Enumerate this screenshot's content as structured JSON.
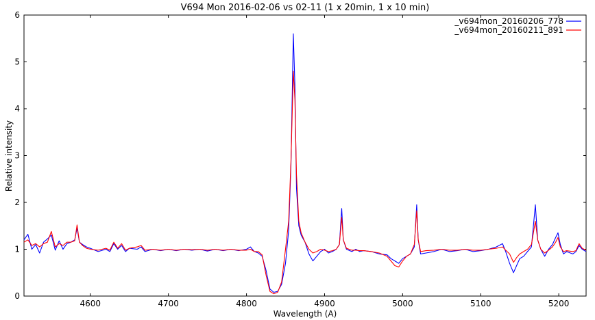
{
  "chart_data": {
    "type": "line",
    "title": "V694 Mon 2016-02-06 vs 02-11 (1 x 20min, 1 x 10 min)",
    "xlabel": "Wavelength (A)",
    "ylabel": "Relative intensity",
    "xlim": [
      4515,
      5235
    ],
    "ylim": [
      0,
      6
    ],
    "xticks": [
      4600,
      4700,
      4800,
      4900,
      5000,
      5100,
      5200
    ],
    "yticks": [
      0,
      1,
      2,
      3,
      4,
      5,
      6
    ],
    "grid": false,
    "legend_position": "top-right",
    "series": [
      {
        "name": "_v694mon_20160206_778",
        "color": "#0000ff",
        "points": [
          [
            4515,
            1.2
          ],
          [
            4520,
            1.32
          ],
          [
            4525,
            1.0
          ],
          [
            4530,
            1.1
          ],
          [
            4535,
            0.92
          ],
          [
            4540,
            1.15
          ],
          [
            4545,
            1.22
          ],
          [
            4550,
            1.3
          ],
          [
            4555,
            0.98
          ],
          [
            4560,
            1.18
          ],
          [
            4565,
            1.0
          ],
          [
            4570,
            1.12
          ],
          [
            4575,
            1.15
          ],
          [
            4580,
            1.2
          ],
          [
            4583,
            1.45
          ],
          [
            4586,
            1.15
          ],
          [
            4590,
            1.1
          ],
          [
            4595,
            1.05
          ],
          [
            4600,
            1.02
          ],
          [
            4610,
            0.95
          ],
          [
            4620,
            1.0
          ],
          [
            4625,
            0.95
          ],
          [
            4630,
            1.12
          ],
          [
            4635,
            1.0
          ],
          [
            4640,
            1.08
          ],
          [
            4645,
            0.95
          ],
          [
            4650,
            1.02
          ],
          [
            4660,
            1.0
          ],
          [
            4665,
            1.05
          ],
          [
            4670,
            0.95
          ],
          [
            4680,
            1.0
          ],
          [
            4690,
            0.97
          ],
          [
            4700,
            1.0
          ],
          [
            4710,
            0.97
          ],
          [
            4720,
            1.0
          ],
          [
            4730,
            0.98
          ],
          [
            4740,
            1.0
          ],
          [
            4750,
            0.96
          ],
          [
            4760,
            1.0
          ],
          [
            4770,
            0.97
          ],
          [
            4780,
            1.0
          ],
          [
            4790,
            0.97
          ],
          [
            4800,
            1.0
          ],
          [
            4805,
            1.05
          ],
          [
            4810,
            0.95
          ],
          [
            4815,
            0.92
          ],
          [
            4820,
            0.85
          ],
          [
            4825,
            0.55
          ],
          [
            4830,
            0.15
          ],
          [
            4835,
            0.08
          ],
          [
            4840,
            0.1
          ],
          [
            4845,
            0.25
          ],
          [
            4850,
            0.7
          ],
          [
            4854,
            1.4
          ],
          [
            4857,
            2.8
          ],
          [
            4860,
            5.6
          ],
          [
            4862,
            4.5
          ],
          [
            4864,
            2.3
          ],
          [
            4867,
            1.5
          ],
          [
            4870,
            1.3
          ],
          [
            4875,
            1.15
          ],
          [
            4880,
            0.9
          ],
          [
            4885,
            0.75
          ],
          [
            4890,
            0.85
          ],
          [
            4895,
            0.95
          ],
          [
            4900,
            1.0
          ],
          [
            4905,
            0.92
          ],
          [
            4910,
            0.95
          ],
          [
            4915,
            1.0
          ],
          [
            4919,
            1.1
          ],
          [
            4922,
            1.87
          ],
          [
            4924,
            1.2
          ],
          [
            4928,
            1.0
          ],
          [
            4935,
            0.95
          ],
          [
            4940,
            1.0
          ],
          [
            4945,
            0.95
          ],
          [
            4950,
            0.97
          ],
          [
            4960,
            0.95
          ],
          [
            4970,
            0.9
          ],
          [
            4980,
            0.88
          ],
          [
            4985,
            0.8
          ],
          [
            4990,
            0.75
          ],
          [
            4995,
            0.7
          ],
          [
            5000,
            0.8
          ],
          [
            5005,
            0.85
          ],
          [
            5010,
            0.9
          ],
          [
            5015,
            1.05
          ],
          [
            5018,
            1.95
          ],
          [
            5020,
            1.2
          ],
          [
            5023,
            0.9
          ],
          [
            5030,
            0.92
          ],
          [
            5040,
            0.95
          ],
          [
            5050,
            1.0
          ],
          [
            5060,
            0.95
          ],
          [
            5070,
            0.97
          ],
          [
            5080,
            1.0
          ],
          [
            5090,
            0.95
          ],
          [
            5100,
            0.97
          ],
          [
            5110,
            1.0
          ],
          [
            5120,
            1.05
          ],
          [
            5128,
            1.12
          ],
          [
            5132,
            0.95
          ],
          [
            5137,
            0.7
          ],
          [
            5142,
            0.5
          ],
          [
            5146,
            0.65
          ],
          [
            5150,
            0.8
          ],
          [
            5155,
            0.85
          ],
          [
            5160,
            0.95
          ],
          [
            5165,
            1.05
          ],
          [
            5170,
            1.95
          ],
          [
            5173,
            1.2
          ],
          [
            5177,
            1.0
          ],
          [
            5182,
            0.85
          ],
          [
            5187,
            1.0
          ],
          [
            5192,
            1.1
          ],
          [
            5196,
            1.25
          ],
          [
            5199,
            1.35
          ],
          [
            5202,
            1.1
          ],
          [
            5206,
            0.9
          ],
          [
            5210,
            0.95
          ],
          [
            5218,
            0.9
          ],
          [
            5222,
            0.95
          ],
          [
            5226,
            1.08
          ],
          [
            5230,
            1.0
          ],
          [
            5235,
            0.95
          ]
        ]
      },
      {
        "name": "_v694mon_20160211_891",
        "color": "#ff0000",
        "points": [
          [
            4515,
            1.15
          ],
          [
            4520,
            1.2
          ],
          [
            4525,
            1.08
          ],
          [
            4530,
            1.12
          ],
          [
            4535,
            1.05
          ],
          [
            4540,
            1.12
          ],
          [
            4545,
            1.15
          ],
          [
            4550,
            1.38
          ],
          [
            4555,
            1.05
          ],
          [
            4560,
            1.12
          ],
          [
            4565,
            1.08
          ],
          [
            4570,
            1.15
          ],
          [
            4575,
            1.15
          ],
          [
            4580,
            1.18
          ],
          [
            4583,
            1.52
          ],
          [
            4586,
            1.15
          ],
          [
            4590,
            1.08
          ],
          [
            4595,
            1.02
          ],
          [
            4600,
            1.0
          ],
          [
            4610,
            0.98
          ],
          [
            4620,
            1.02
          ],
          [
            4625,
            0.98
          ],
          [
            4630,
            1.15
          ],
          [
            4635,
            1.02
          ],
          [
            4640,
            1.12
          ],
          [
            4645,
            0.98
          ],
          [
            4650,
            1.02
          ],
          [
            4660,
            1.05
          ],
          [
            4665,
            1.08
          ],
          [
            4670,
            0.98
          ],
          [
            4680,
            1.0
          ],
          [
            4690,
            0.98
          ],
          [
            4700,
            1.0
          ],
          [
            4710,
            0.98
          ],
          [
            4720,
            1.0
          ],
          [
            4730,
            0.99
          ],
          [
            4740,
            1.0
          ],
          [
            4750,
            0.98
          ],
          [
            4760,
            1.0
          ],
          [
            4770,
            0.98
          ],
          [
            4780,
            1.0
          ],
          [
            4790,
            0.98
          ],
          [
            4800,
            0.98
          ],
          [
            4805,
            1.0
          ],
          [
            4810,
            0.95
          ],
          [
            4815,
            0.95
          ],
          [
            4820,
            0.88
          ],
          [
            4825,
            0.45
          ],
          [
            4830,
            0.1
          ],
          [
            4835,
            0.05
          ],
          [
            4840,
            0.08
          ],
          [
            4845,
            0.3
          ],
          [
            4850,
            1.0
          ],
          [
            4854,
            1.6
          ],
          [
            4857,
            2.9
          ],
          [
            4860,
            4.8
          ],
          [
            4862,
            4.2
          ],
          [
            4864,
            2.6
          ],
          [
            4867,
            1.6
          ],
          [
            4870,
            1.35
          ],
          [
            4875,
            1.15
          ],
          [
            4880,
            1.0
          ],
          [
            4885,
            0.92
          ],
          [
            4890,
            0.95
          ],
          [
            4895,
            1.0
          ],
          [
            4900,
            0.98
          ],
          [
            4905,
            0.95
          ],
          [
            4910,
            0.97
          ],
          [
            4915,
            1.0
          ],
          [
            4919,
            1.1
          ],
          [
            4922,
            1.68
          ],
          [
            4924,
            1.2
          ],
          [
            4928,
            1.02
          ],
          [
            4935,
            0.98
          ],
          [
            4940,
            0.98
          ],
          [
            4945,
            0.97
          ],
          [
            4950,
            0.97
          ],
          [
            4960,
            0.95
          ],
          [
            4970,
            0.92
          ],
          [
            4980,
            0.85
          ],
          [
            4985,
            0.75
          ],
          [
            4990,
            0.65
          ],
          [
            4995,
            0.62
          ],
          [
            5000,
            0.75
          ],
          [
            5005,
            0.85
          ],
          [
            5010,
            0.9
          ],
          [
            5015,
            1.1
          ],
          [
            5018,
            1.82
          ],
          [
            5020,
            1.2
          ],
          [
            5023,
            0.95
          ],
          [
            5030,
            0.97
          ],
          [
            5040,
            0.98
          ],
          [
            5050,
            1.0
          ],
          [
            5060,
            0.98
          ],
          [
            5070,
            0.98
          ],
          [
            5080,
            1.0
          ],
          [
            5090,
            0.98
          ],
          [
            5100,
            0.98
          ],
          [
            5110,
            1.0
          ],
          [
            5120,
            1.02
          ],
          [
            5128,
            1.05
          ],
          [
            5132,
            0.98
          ],
          [
            5137,
            0.9
          ],
          [
            5142,
            0.72
          ],
          [
            5146,
            0.82
          ],
          [
            5150,
            0.9
          ],
          [
            5155,
            0.95
          ],
          [
            5160,
            1.0
          ],
          [
            5165,
            1.1
          ],
          [
            5170,
            1.6
          ],
          [
            5173,
            1.2
          ],
          [
            5177,
            1.0
          ],
          [
            5182,
            0.92
          ],
          [
            5187,
            0.98
          ],
          [
            5192,
            1.05
          ],
          [
            5196,
            1.15
          ],
          [
            5199,
            1.25
          ],
          [
            5202,
            1.05
          ],
          [
            5206,
            0.95
          ],
          [
            5210,
            0.97
          ],
          [
            5218,
            0.95
          ],
          [
            5222,
            0.97
          ],
          [
            5226,
            1.12
          ],
          [
            5230,
            1.02
          ],
          [
            5235,
            0.98
          ]
        ]
      }
    ]
  }
}
